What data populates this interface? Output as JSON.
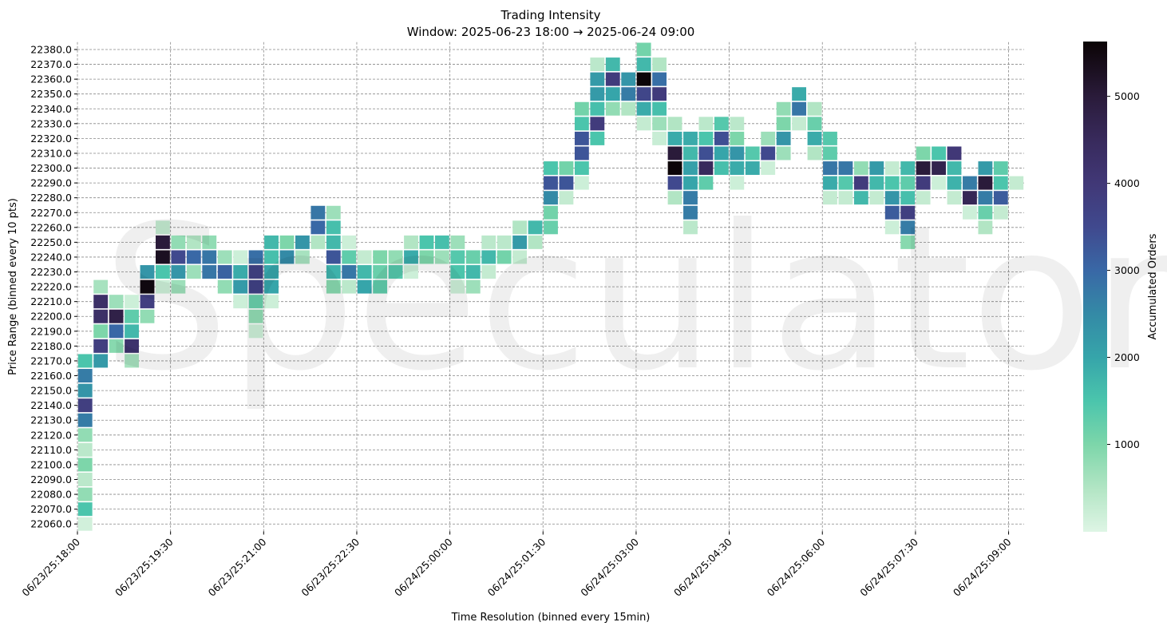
{
  "chart_data": {
    "type": "heatmap",
    "title": "Trading Intensity",
    "subtitle": "Window: 2025-06-23 18:00 → 2025-06-24 09:00",
    "xlabel": "Time Resolution (binned every 15min)",
    "ylabel": "Price Range (binned every 10 pts)",
    "colorbar_label": "Accumulated Orders",
    "colorbar_ticks": [
      1000,
      2000,
      3000,
      4000,
      5000
    ],
    "colorbar_range": [
      0,
      5630
    ],
    "colormap": "mako_r",
    "grid": true,
    "watermark": "Speculator",
    "x_tick_labels": [
      "06/23/25:18:00",
      "06/23/25:19:30",
      "06/23/25:21:00",
      "06/23/25:22:30",
      "06/24/25:00:00",
      "06/24/25:01:30",
      "06/24/25:03:00",
      "06/24/25:04:30",
      "06/24/25:06:00",
      "06/24/25:07:30",
      "06/24/25:09:00"
    ],
    "y_tick_labels": [
      "22380.0",
      "22370.0",
      "22360.0",
      "22350.0",
      "22340.0",
      "22330.0",
      "22320.0",
      "22310.0",
      "22300.0",
      "22290.0",
      "22280.0",
      "22270.0",
      "22260.0",
      "22250.0",
      "22240.0",
      "22230.0",
      "22220.0",
      "22210.0",
      "22200.0",
      "22190.0",
      "22180.0",
      "22170.0",
      "22160.0",
      "22150.0",
      "22140.0",
      "22130.0",
      "22120.0",
      "22110.0",
      "22100.0",
      "22090.0",
      "22080.0",
      "22070.0",
      "22060.0"
    ],
    "columns": [
      {
        "time": "06/23/25 18:00",
        "cells": {
          "22170": 1500,
          "22160": 2700,
          "22150": 2300,
          "22140": 3800,
          "22130": 2700,
          "22120": 800,
          "22110": 400,
          "22100": 1000,
          "22090": 400,
          "22080": 800,
          "22070": 1500,
          "22060": 150
        }
      },
      {
        "time": "06/23/25 18:15",
        "cells": {
          "22220": 600,
          "22210": 4300,
          "22200": 4300,
          "22190": 1000,
          "22180": 3800,
          "22170": 2200
        }
      },
      {
        "time": "06/23/25 18:30",
        "cells": {
          "22210": 700,
          "22200": 4800,
          "22190": 3000,
          "22180": 900
        }
      },
      {
        "time": "06/23/25 18:45",
        "cells": {
          "22210": 200,
          "22200": 1300,
          "22190": 1700,
          "22180": 4200,
          "22170": 600
        }
      },
      {
        "time": "06/23/25 19:00",
        "cells": {
          "22230": 2300,
          "22220": 5500,
          "22210": 3800,
          "22200": 800
        }
      },
      {
        "time": "06/23/25 19:15",
        "cells": {
          "22260": 300,
          "22250": 5000,
          "22240": 5300,
          "22230": 1500,
          "22220": 200
        }
      },
      {
        "time": "06/23/25 19:30",
        "cells": {
          "22250": 800,
          "22240": 3500,
          "22230": 2300,
          "22220": 700
        }
      },
      {
        "time": "06/23/25 19:45",
        "cells": {
          "22250": 500,
          "22240": 3000,
          "22230": 700
        }
      },
      {
        "time": "06/23/25 20:00",
        "cells": {
          "22250": 800,
          "22240": 2800,
          "22230": 2800
        }
      },
      {
        "time": "06/23/25 20:15",
        "cells": {
          "22240": 700,
          "22230": 3100,
          "22220": 800
        }
      },
      {
        "time": "06/23/25 20:30",
        "cells": {
          "22240": 200,
          "22230": 1900,
          "22220": 2200,
          "22210": 200
        }
      },
      {
        "time": "06/23/25 20:45",
        "cells": {
          "22240": 2900,
          "22230": 3700,
          "22220": 3700,
          "22210": 1200,
          "22200": 800,
          "22190": 200
        }
      },
      {
        "time": "06/23/25 21:00",
        "cells": {
          "22250": 1700,
          "22240": 1600,
          "22230": 2000,
          "22220": 2000,
          "22210": 200
        }
      },
      {
        "time": "06/23/25 21:15",
        "cells": {
          "22250": 1000,
          "22240": 2500
        }
      },
      {
        "time": "06/23/25 21:30",
        "cells": {
          "22250": 2300,
          "22240": 600
        }
      },
      {
        "time": "06/23/25 21:45",
        "cells": {
          "22270": 2800,
          "22260": 3000,
          "22250": 500
        }
      },
      {
        "time": "06/23/25 22:00",
        "cells": {
          "22270": 700,
          "22260": 1600,
          "22250": 1700,
          "22240": 3300,
          "22230": 1800,
          "22220": 900
        }
      },
      {
        "time": "06/23/25 22:15",
        "cells": {
          "22250": 200,
          "22240": 1300,
          "22230": 2800,
          "22220": 400
        }
      },
      {
        "time": "06/23/25 22:30",
        "cells": {
          "22240": 300,
          "22230": 1700,
          "22220": 2000
        }
      },
      {
        "time": "06/23/25 22:45",
        "cells": {
          "22240": 1000,
          "22230": 1200,
          "22220": 1300
        }
      },
      {
        "time": "06/23/25 23:00",
        "cells": {
          "22240": 800,
          "22230": 1400
        }
      },
      {
        "time": "06/23/25 23:15",
        "cells": {
          "22250": 500,
          "22240": 1900,
          "22230": 200
        }
      },
      {
        "time": "06/23/25 23:30",
        "cells": {
          "22250": 1500,
          "22240": 1000
        }
      },
      {
        "time": "06/23/25 23:45",
        "cells": {
          "22250": 1600,
          "22240": 700
        }
      },
      {
        "time": "06/24/25 00:00",
        "cells": {
          "22250": 700,
          "22240": 1400,
          "22230": 1500,
          "22220": 200
        }
      },
      {
        "time": "06/24/25 00:15",
        "cells": {
          "22240": 1200,
          "22230": 1700,
          "22220": 700
        }
      },
      {
        "time": "06/24/25 00:30",
        "cells": {
          "22250": 400,
          "22240": 1700,
          "22230": 300
        }
      },
      {
        "time": "06/24/25 00:45",
        "cells": {
          "22250": 400,
          "22240": 1100
        }
      },
      {
        "time": "06/24/25 01:00",
        "cells": {
          "22260": 500,
          "22250": 2200,
          "22240": 300
        }
      },
      {
        "time": "06/24/25 01:15",
        "cells": {
          "22260": 1700,
          "22250": 500
        }
      },
      {
        "time": "06/24/25 01:30",
        "cells": {
          "22300": 1500,
          "22290": 3300,
          "22280": 2500,
          "22270": 1100,
          "22260": 1200
        }
      },
      {
        "time": "06/24/25 01:45",
        "cells": {
          "22300": 1100,
          "22290": 3300,
          "22280": 300
        }
      },
      {
        "time": "06/24/25 02:00",
        "cells": {
          "22340": 1100,
          "22330": 1500,
          "22320": 3300,
          "22310": 3300,
          "22300": 1500,
          "22290": 200
        }
      },
      {
        "time": "06/24/25 02:15",
        "cells": {
          "22370": 400,
          "22360": 2200,
          "22350": 2200,
          "22340": 1600,
          "22330": 3900,
          "22320": 1500
        }
      },
      {
        "time": "06/24/25 02:30",
        "cells": {
          "22370": 1700,
          "22360": 3900,
          "22350": 2000,
          "22340": 800
        }
      },
      {
        "time": "06/24/25 02:45",
        "cells": {
          "22360": 2300,
          "22350": 2700,
          "22340": 500
        }
      },
      {
        "time": "06/24/25 03:00",
        "cells": {
          "22380": 1100,
          "22370": 1700,
          "22360": 5600,
          "22350": 3600,
          "22340": 1900,
          "22330": 300
        }
      },
      {
        "time": "06/24/25 03:15",
        "cells": {
          "22370": 500,
          "22360": 2900,
          "22350": 3900,
          "22340": 1600,
          "22330": 700,
          "22320": 250
        }
      },
      {
        "time": "06/24/25 03:30",
        "cells": {
          "22330": 500,
          "22320": 1900,
          "22310": 5000,
          "22300": 5600,
          "22290": 3500,
          "22280": 500
        }
      },
      {
        "time": "06/24/25 03:45",
        "cells": {
          "22320": 1900,
          "22310": 1700,
          "22300": 2100,
          "22290": 2000,
          "22280": 2700,
          "22270": 2700,
          "22260": 400
        }
      },
      {
        "time": "06/24/25 04:00",
        "cells": {
          "22330": 400,
          "22320": 1500,
          "22310": 3400,
          "22300": 4500,
          "22290": 1300
        }
      },
      {
        "time": "06/24/25 04:15",
        "cells": {
          "22330": 1400,
          "22320": 3400,
          "22310": 2000,
          "22300": 1600
        }
      },
      {
        "time": "06/24/25 04:30",
        "cells": {
          "22330": 400,
          "22320": 1000,
          "22310": 2300,
          "22300": 1900,
          "22290": 200
        }
      },
      {
        "time": "06/24/25 04:45",
        "cells": {
          "22310": 1400,
          "22300": 1900
        }
      },
      {
        "time": "06/24/25 05:00",
        "cells": {
          "22320": 700,
          "22310": 3500,
          "22300": 200
        }
      },
      {
        "time": "06/24/25 05:15",
        "cells": {
          "22340": 800,
          "22330": 1000,
          "22320": 2300,
          "22310": 700
        }
      },
      {
        "time": "06/24/25 05:30",
        "cells": {
          "22350": 1900,
          "22340": 2800,
          "22330": 300
        }
      },
      {
        "time": "06/24/25 05:45",
        "cells": {
          "22340": 500,
          "22330": 1200,
          "22320": 1900,
          "22310": 500
        }
      },
      {
        "time": "06/24/25 06:00",
        "cells": {
          "22320": 1400,
          "22310": 1300,
          "22300": 2800,
          "22290": 1900,
          "22280": 300
        }
      },
      {
        "time": "06/24/25 06:15",
        "cells": {
          "22300": 2800,
          "22290": 1400,
          "22280": 300
        }
      },
      {
        "time": "06/24/25 06:30",
        "cells": {
          "22300": 800,
          "22290": 3900,
          "22280": 1700
        }
      },
      {
        "time": "06/24/25 06:45",
        "cells": {
          "22300": 2200,
          "22290": 1700,
          "22280": 300
        }
      },
      {
        "time": "06/24/25 07:00",
        "cells": {
          "22300": 300,
          "22290": 1500,
          "22280": 2300,
          "22270": 3200,
          "22260": 200
        }
      },
      {
        "time": "06/24/25 07:15",
        "cells": {
          "22300": 1700,
          "22290": 1300,
          "22280": 1600,
          "22270": 3800,
          "22260": 2700,
          "22250": 900
        }
      },
      {
        "time": "06/24/25 07:30",
        "cells": {
          "22310": 1000,
          "22300": 5000,
          "22290": 3900,
          "22280": 300
        }
      },
      {
        "time": "06/24/25 07:45",
        "cells": {
          "22310": 1500,
          "22300": 4700,
          "22290": 200
        }
      },
      {
        "time": "06/24/25 08:00",
        "cells": {
          "22310": 4000,
          "22300": 1700,
          "22290": 1800,
          "22280": 300
        }
      },
      {
        "time": "06/24/25 08:15",
        "cells": {
          "22290": 2700,
          "22280": 4600,
          "22270": 200
        }
      },
      {
        "time": "06/24/25 08:30",
        "cells": {
          "22300": 2200,
          "22290": 5000,
          "22280": 2700,
          "22270": 1200,
          "22260": 500
        }
      },
      {
        "time": "06/24/25 08:45",
        "cells": {
          "22300": 1300,
          "22290": 1500,
          "22280": 3200,
          "22270": 300
        }
      },
      {
        "time": "06/24/25 09:00",
        "cells": {
          "22290": 300
        }
      }
    ]
  }
}
